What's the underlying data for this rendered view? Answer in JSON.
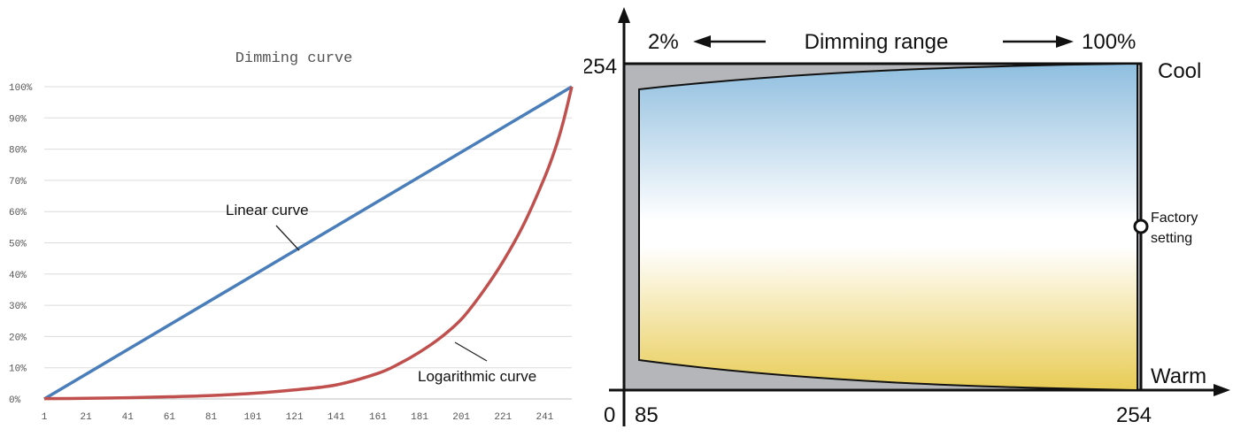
{
  "chart_data": [
    {
      "type": "line",
      "title": "Dimming curve",
      "xlabel": "",
      "ylabel": "",
      "x_ticks": [
        "1",
        "21",
        "41",
        "61",
        "81",
        "101",
        "121",
        "141",
        "161",
        "181",
        "201",
        "221",
        "241"
      ],
      "y_ticks": [
        "0%",
        "10%",
        "20%",
        "30%",
        "40%",
        "50%",
        "60%",
        "70%",
        "80%",
        "90%",
        "100%"
      ],
      "xlim": [
        1,
        254
      ],
      "ylim": [
        0,
        100
      ],
      "grid": true,
      "annotations": [
        {
          "text": "Linear curve",
          "series": "Linear curve"
        },
        {
          "text": "Logarithmic curve",
          "series": "Logarithmic curve"
        }
      ],
      "series": [
        {
          "name": "Linear curve",
          "color": "#4a7ebb",
          "x": [
            1,
            254
          ],
          "y": [
            0,
            100
          ]
        },
        {
          "name": "Logarithmic curve",
          "color": "#c0504d",
          "x": [
            1,
            21,
            41,
            61,
            81,
            101,
            121,
            141,
            161,
            171,
            181,
            191,
            201,
            211,
            221,
            231,
            241,
            246,
            250,
            254
          ],
          "y": [
            0.1,
            0.2,
            0.4,
            0.7,
            1.1,
            1.8,
            2.9,
            4.5,
            8.2,
            11.2,
            15.0,
            19.6,
            25.5,
            34.0,
            44.0,
            56.0,
            71.0,
            80.0,
            89.0,
            100
          ]
        }
      ]
    },
    {
      "type": "area",
      "title": "Dimming range",
      "range_labels": {
        "min": "2%",
        "max": "100%"
      },
      "x_ticks": [
        "0",
        "85",
        "254"
      ],
      "y_ticks": [
        "254"
      ],
      "xlim": [
        0,
        254
      ],
      "ylim": [
        0,
        254
      ],
      "labels": {
        "top_right": "Cool",
        "bottom_right": "Warm",
        "marker": [
          "Factory",
          "setting"
        ]
      },
      "marker_value": {
        "x": 254,
        "y": 127
      },
      "colors": {
        "cool": "#8fbedf",
        "warm": "#e8cc55",
        "outside": "#b4b6b9",
        "outline": "#111111"
      }
    }
  ]
}
